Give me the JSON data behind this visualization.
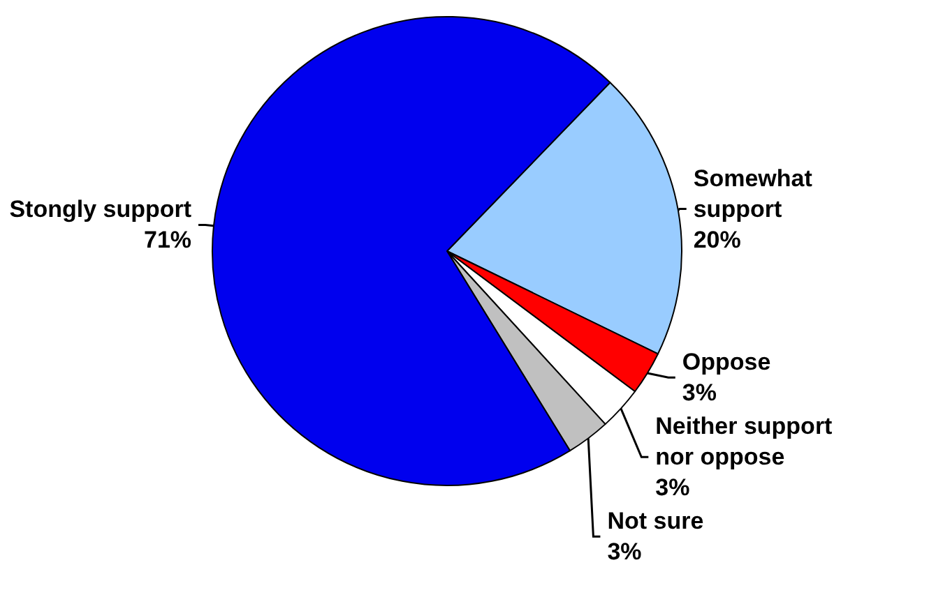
{
  "chart_data": {
    "type": "pie",
    "categories": [
      "Somewhat support",
      "Oppose",
      "Neither support nor oppose",
      "Not sure",
      "Stongly support"
    ],
    "values": [
      20,
      3,
      3,
      3,
      71
    ],
    "colors": [
      "#99ccff",
      "#ff0000",
      "#ffffff",
      "#c0c0c0",
      "#0000ee"
    ],
    "value_labels": [
      "20%",
      "3%",
      "3%",
      "3%",
      "71%"
    ],
    "legend": false
  }
}
